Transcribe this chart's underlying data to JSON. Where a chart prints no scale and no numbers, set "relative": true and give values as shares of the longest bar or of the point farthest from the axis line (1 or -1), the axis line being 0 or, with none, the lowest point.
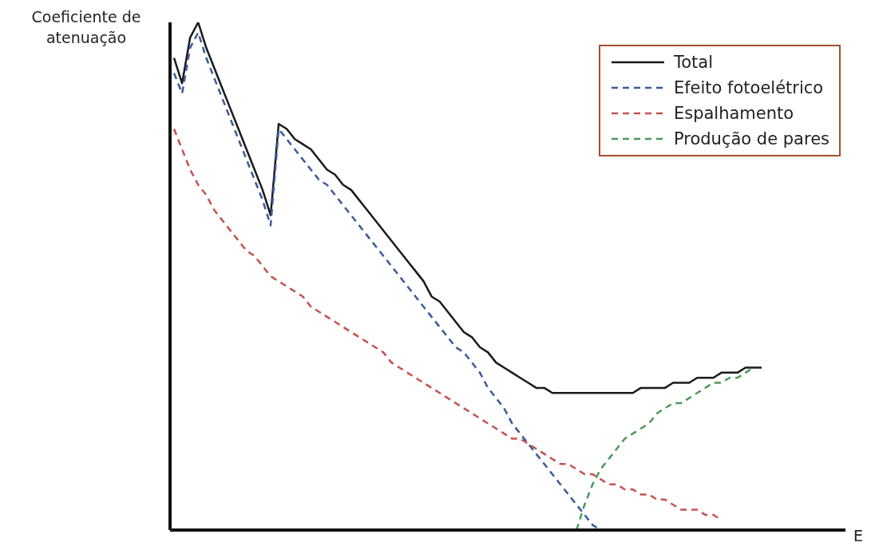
{
  "chart_data": {
    "type": "line",
    "relative": true,
    "ylabel": "Coeficiente de atenuação",
    "annotations": [
      "E"
    ],
    "legend": "top right",
    "grid": false,
    "categories": [
      null,
      null,
      null,
      null,
      null,
      null,
      null,
      null,
      null,
      null,
      null,
      null,
      null,
      null,
      null,
      null,
      null,
      null,
      null,
      null,
      null,
      null,
      null,
      null,
      null,
      null,
      null,
      null,
      null,
      null,
      null,
      null,
      null,
      null,
      null,
      null,
      null,
      null,
      null,
      null,
      null,
      null,
      null,
      null,
      null,
      null,
      null,
      null,
      null,
      null,
      null,
      null,
      null,
      null,
      null,
      null,
      null,
      null,
      null,
      null,
      null,
      null,
      null,
      null,
      null,
      null,
      null,
      null,
      null,
      null,
      null,
      null,
      null,
      null
    ],
    "series": [
      {
        "name": "Total",
        "color": "#1a1a1a",
        "line_style": "solid",
        "values": [
          0.93,
          0.88,
          0.97,
          1.0,
          0.95,
          0.91,
          0.87,
          0.83,
          0.79,
          0.75,
          0.71,
          0.67,
          0.62,
          0.8,
          0.79,
          0.77,
          0.76,
          0.75,
          0.73,
          0.71,
          0.7,
          0.68,
          0.67,
          0.65,
          0.63,
          0.61,
          0.59,
          0.57,
          0.55,
          0.53,
          0.51,
          0.49,
          0.46,
          0.45,
          0.43,
          0.41,
          0.39,
          0.38,
          0.36,
          0.35,
          0.33,
          0.32,
          0.31,
          0.3,
          0.29,
          0.28,
          0.28,
          0.27,
          0.27,
          0.27,
          0.27,
          0.27,
          0.27,
          0.27,
          0.27,
          0.27,
          0.27,
          0.27,
          0.28,
          0.28,
          0.28,
          0.28,
          0.29,
          0.29,
          0.29,
          0.3,
          0.3,
          0.3,
          0.31,
          0.31,
          0.31,
          0.32,
          0.32,
          0.32
        ]
      },
      {
        "name": "Efeito fotoelétrico",
        "color": "#3a5a9a",
        "line_style": "dashed",
        "values": [
          0.9,
          0.86,
          0.95,
          0.98,
          0.93,
          0.89,
          0.85,
          0.81,
          0.77,
          0.73,
          0.69,
          0.65,
          0.6,
          0.79,
          0.77,
          0.75,
          0.73,
          0.71,
          0.69,
          0.68,
          0.66,
          0.64,
          0.62,
          0.6,
          0.58,
          0.56,
          0.54,
          0.52,
          0.5,
          0.48,
          0.46,
          0.44,
          0.42,
          0.4,
          0.38,
          0.36,
          0.35,
          0.33,
          0.31,
          0.28,
          0.26,
          0.24,
          0.21,
          0.19,
          0.17,
          0.15,
          0.13,
          0.11,
          0.09,
          0.07,
          0.05,
          0.03,
          0.01,
          0.0,
          null,
          null,
          null,
          null,
          null,
          null,
          null,
          null,
          null,
          null,
          null,
          null,
          null,
          null,
          null,
          null,
          null,
          null,
          null,
          null
        ]
      },
      {
        "name": "Espalhamento",
        "color": "#c85050",
        "line_style": "dashed",
        "values": [
          0.79,
          0.75,
          0.71,
          0.68,
          0.66,
          0.63,
          0.61,
          0.59,
          0.57,
          0.55,
          0.54,
          0.52,
          0.5,
          0.49,
          0.48,
          0.47,
          0.46,
          0.44,
          0.43,
          0.42,
          0.41,
          0.4,
          0.39,
          0.38,
          0.37,
          0.36,
          0.35,
          0.33,
          0.32,
          0.31,
          0.3,
          0.29,
          0.28,
          0.27,
          0.26,
          0.25,
          0.24,
          0.23,
          0.22,
          0.21,
          0.2,
          0.19,
          0.18,
          0.18,
          0.17,
          0.16,
          0.15,
          0.14,
          0.13,
          0.13,
          0.12,
          0.11,
          0.11,
          0.1,
          0.09,
          0.09,
          0.08,
          0.08,
          0.07,
          0.07,
          0.06,
          0.06,
          0.05,
          0.04,
          0.04,
          0.04,
          0.03,
          0.03,
          0.02,
          null,
          null,
          null,
          null,
          null
        ]
      },
      {
        "name": "Produção de pares",
        "color": "#4a9a5a",
        "line_style": "dashed",
        "values": [
          null,
          null,
          null,
          null,
          null,
          null,
          null,
          null,
          null,
          null,
          null,
          null,
          null,
          null,
          null,
          null,
          null,
          null,
          null,
          null,
          null,
          null,
          null,
          null,
          null,
          null,
          null,
          null,
          null,
          null,
          null,
          null,
          null,
          null,
          null,
          null,
          null,
          null,
          null,
          null,
          null,
          null,
          null,
          null,
          null,
          null,
          null,
          null,
          null,
          null,
          0.0,
          0.05,
          0.09,
          0.12,
          0.14,
          0.16,
          0.18,
          0.19,
          0.2,
          0.21,
          0.23,
          0.24,
          0.25,
          0.25,
          0.26,
          0.27,
          0.28,
          0.29,
          0.29,
          0.3,
          0.3,
          0.31,
          0.32,
          null
        ]
      }
    ]
  }
}
